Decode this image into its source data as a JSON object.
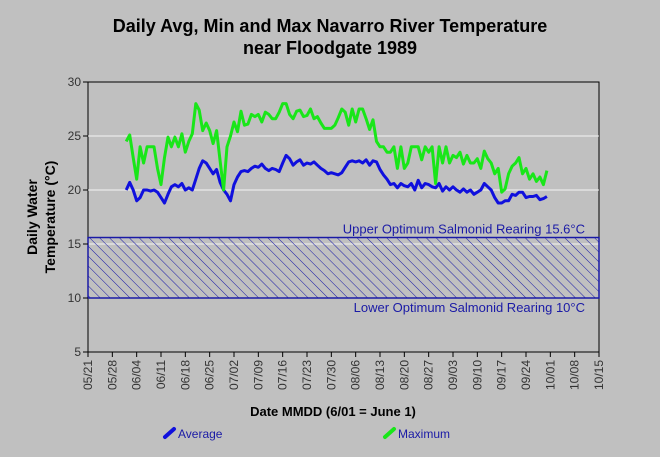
{
  "chart_data": {
    "type": "line",
    "title_line1": "Daily Avg, Min and Max Navarro River Temperature",
    "title_line2": "near Floodgate 1989",
    "xlabel": "Date MMDD (6/01 = June 1)",
    "ylabel_line1": "Daily Water",
    "ylabel_line2": "Temperature (°C)",
    "ylim": [
      5,
      30
    ],
    "y_ticks": [
      5,
      10,
      15,
      20,
      25,
      30
    ],
    "grid": true,
    "legend_position": "bottom",
    "x_ticks": [
      "05/21",
      "05/28",
      "06/04",
      "06/11",
      "06/18",
      "06/25",
      "07/02",
      "07/09",
      "07/16",
      "07/23",
      "07/30",
      "08/06",
      "08/13",
      "08/20",
      "08/27",
      "09/03",
      "09/10",
      "09/17",
      "09/24",
      "10/01",
      "10/08",
      "10/15"
    ],
    "bands": [
      {
        "lower": 10,
        "upper": 15.6,
        "upper_label": "Upper Optimum Salmonid Rearing 15.6°C",
        "lower_label": "Lower Optimum Salmonid Rearing 10°C"
      }
    ],
    "series": [
      {
        "name": "Average",
        "color": "#1010dd",
        "x": [
          "06/01",
          "06/02",
          "06/03",
          "06/04",
          "06/05",
          "06/06",
          "06/07",
          "06/08",
          "06/09",
          "06/10",
          "06/11",
          "06/12",
          "06/13",
          "06/14",
          "06/15",
          "06/16",
          "06/17",
          "06/18",
          "06/19",
          "06/20",
          "06/21",
          "06/22",
          "06/23",
          "06/24",
          "06/25",
          "06/26",
          "06/27",
          "06/28",
          "06/29",
          "06/30",
          "07/01",
          "07/02",
          "07/03",
          "07/04",
          "07/05",
          "07/06",
          "07/07",
          "07/08",
          "07/09",
          "07/10",
          "07/11",
          "07/12",
          "07/13",
          "07/14",
          "07/15",
          "07/16",
          "07/17",
          "07/18",
          "07/19",
          "07/20",
          "07/21",
          "07/22",
          "07/23",
          "07/24",
          "07/25",
          "07/26",
          "07/27",
          "07/28",
          "07/29",
          "07/30",
          "07/31",
          "08/01",
          "08/02",
          "08/03",
          "08/04",
          "08/05",
          "08/06",
          "08/07",
          "08/08",
          "08/09",
          "08/10",
          "08/11",
          "08/12",
          "08/13",
          "08/14",
          "08/15",
          "08/16",
          "08/17",
          "08/18",
          "08/19",
          "08/20",
          "08/21",
          "08/22",
          "08/23",
          "08/24",
          "08/25",
          "08/26",
          "08/27",
          "08/28",
          "08/29",
          "08/30",
          "08/31",
          "09/01",
          "09/02",
          "09/03",
          "09/04",
          "09/05",
          "09/06",
          "09/07",
          "09/08",
          "09/09",
          "09/10",
          "09/11",
          "09/12",
          "09/13",
          "09/14",
          "09/15",
          "09/16",
          "09/17",
          "09/18",
          "09/19",
          "09/20",
          "09/21",
          "09/22",
          "09/23",
          "09/24",
          "09/25",
          "09/26",
          "09/27",
          "09/28",
          "09/29",
          "09/30"
        ],
        "values": [
          20.0,
          20.7,
          20.0,
          19.0,
          19.3,
          20.0,
          20.0,
          19.9,
          20.0,
          19.8,
          19.3,
          18.8,
          19.6,
          20.3,
          20.5,
          20.3,
          20.6,
          20.0,
          20.2,
          20.0,
          21.0,
          22.0,
          22.7,
          22.5,
          22.0,
          21.5,
          21.9,
          20.7,
          20.0,
          19.6,
          19.0,
          20.5,
          21.2,
          21.7,
          21.8,
          21.7,
          22.0,
          22.2,
          22.1,
          22.4,
          22.0,
          21.8,
          22.0,
          21.9,
          21.7,
          22.5,
          23.2,
          22.9,
          22.3,
          22.6,
          22.8,
          22.3,
          22.5,
          22.4,
          22.6,
          22.3,
          22.0,
          21.8,
          21.5,
          21.6,
          21.5,
          21.4,
          21.6,
          22.1,
          22.6,
          22.7,
          22.6,
          22.7,
          22.5,
          22.8,
          22.3,
          22.7,
          22.6,
          21.9,
          21.4,
          21.0,
          20.5,
          20.6,
          20.2,
          20.6,
          20.4,
          20.3,
          20.6,
          20.0,
          20.9,
          20.2,
          20.6,
          20.5,
          20.3,
          20.2,
          20.6,
          19.9,
          20.3,
          20.0,
          20.3,
          20.0,
          19.8,
          20.1,
          19.8,
          20.0,
          19.6,
          19.8,
          20.0,
          20.6,
          20.3,
          20.0,
          19.3,
          18.8,
          18.8,
          19.0,
          19.0,
          19.6,
          19.5,
          19.8,
          19.8,
          19.3,
          19.4,
          19.4,
          19.5,
          19.1,
          19.2,
          19.4
        ]
      },
      {
        "name": "Maximum",
        "color": "#19e619",
        "x": [
          "06/01",
          "06/02",
          "06/03",
          "06/04",
          "06/05",
          "06/06",
          "06/07",
          "06/08",
          "06/09",
          "06/10",
          "06/11",
          "06/12",
          "06/13",
          "06/14",
          "06/15",
          "06/16",
          "06/17",
          "06/18",
          "06/19",
          "06/20",
          "06/21",
          "06/22",
          "06/23",
          "06/24",
          "06/25",
          "06/26",
          "06/27",
          "06/28",
          "06/29",
          "06/30",
          "07/01",
          "07/02",
          "07/03",
          "07/04",
          "07/05",
          "07/06",
          "07/07",
          "07/08",
          "07/09",
          "07/10",
          "07/11",
          "07/12",
          "07/13",
          "07/14",
          "07/15",
          "07/16",
          "07/17",
          "07/18",
          "07/19",
          "07/20",
          "07/21",
          "07/22",
          "07/23",
          "07/24",
          "07/25",
          "07/26",
          "07/27",
          "07/28",
          "07/29",
          "07/30",
          "07/31",
          "08/01",
          "08/02",
          "08/03",
          "08/04",
          "08/05",
          "08/06",
          "08/07",
          "08/08",
          "08/09",
          "08/10",
          "08/11",
          "08/12",
          "08/13",
          "08/14",
          "08/15",
          "08/16",
          "08/17",
          "08/18",
          "08/19",
          "08/20",
          "08/21",
          "08/22",
          "08/23",
          "08/24",
          "08/25",
          "08/26",
          "08/27",
          "08/28",
          "08/29",
          "08/30",
          "08/31",
          "09/01",
          "09/02",
          "09/03",
          "09/04",
          "09/05",
          "09/06",
          "09/07",
          "09/08",
          "09/09",
          "09/10",
          "09/11",
          "09/12",
          "09/13",
          "09/14",
          "09/15",
          "09/16",
          "09/17",
          "09/18",
          "09/19",
          "09/20",
          "09/21",
          "09/22",
          "09/23",
          "09/24",
          "09/25",
          "09/26",
          "09/27",
          "09/28",
          "09/29",
          "09/30"
        ],
        "values": [
          24.5,
          25.1,
          23.0,
          21.0,
          24.0,
          22.5,
          24.0,
          24.0,
          24.0,
          22.0,
          20.5,
          23.0,
          24.9,
          24.0,
          24.9,
          24.0,
          25.2,
          23.5,
          24.5,
          25.2,
          28.0,
          27.4,
          25.5,
          26.2,
          25.5,
          24.3,
          25.5,
          22.7,
          20.0,
          24.0,
          25.0,
          26.3,
          25.4,
          27.3,
          26.0,
          26.1,
          27.0,
          26.8,
          27.0,
          26.3,
          27.2,
          27.0,
          26.6,
          26.6,
          27.2,
          28.0,
          28.0,
          27.0,
          26.6,
          27.3,
          27.4,
          26.8,
          26.9,
          27.5,
          26.6,
          26.8,
          26.2,
          25.7,
          25.7,
          25.7,
          26.0,
          26.7,
          27.5,
          27.2,
          26.0,
          27.5,
          26.3,
          27.5,
          27.5,
          26.6,
          25.6,
          26.5,
          24.5,
          24.0,
          24.0,
          23.5,
          23.5,
          24.0,
          22.0,
          24.0,
          22.0,
          22.5,
          24.0,
          24.0,
          24.0,
          22.8,
          24.0,
          23.5,
          24.0,
          20.6,
          24.0,
          22.5,
          24.0,
          22.5,
          23.2,
          23.0,
          23.5,
          22.4,
          23.2,
          22.5,
          22.5,
          22.9,
          22.0,
          23.6,
          22.9,
          22.5,
          21.5,
          22.0,
          19.8,
          20.1,
          21.5,
          22.2,
          22.5,
          23.0,
          21.5,
          22.0,
          21.0,
          21.5,
          20.8,
          21.2,
          20.5,
          21.8
        ]
      }
    ]
  }
}
